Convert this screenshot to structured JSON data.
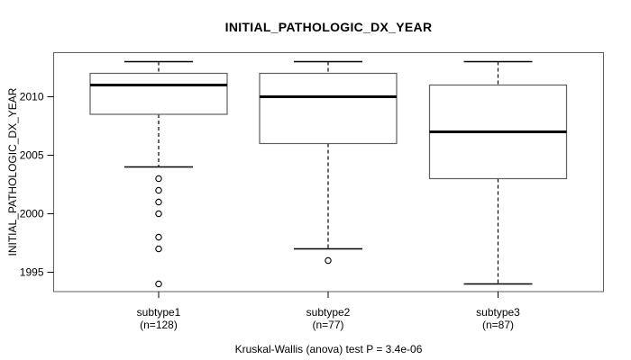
{
  "title": "INITIAL_PATHOLOGIC_DX_YEAR",
  "caption": "Kruskal-Wallis (anova) test P = 3.4e-06",
  "colors": {
    "background": "#ffffff",
    "line": "#000000",
    "box_border": "#5f5f5f",
    "plot_border": "#5f5f5f",
    "text": "#000000"
  },
  "chart_data": {
    "type": "boxplot",
    "title": "INITIAL_PATHOLOGIC_DX_YEAR",
    "xlabel": "",
    "ylabel": "INITIAL_PATHOLOGIC_DX_YEAR",
    "yticks": [
      1995,
      2000,
      2005,
      2010
    ],
    "ylim": [
      1993.3,
      2013.9
    ],
    "grid": false,
    "legend": "none",
    "caption": "Kruskal-Wallis (anova) test P = 3.4e-06",
    "groups": [
      {
        "label": "subtype1",
        "n_label": "(n=128)",
        "n": 128,
        "whisker_low": 2004,
        "q1": 2008.5,
        "median": 2011,
        "q3": 2012,
        "whisker_high": 2013,
        "outliers": [
          2003,
          2002,
          2001,
          2000,
          1998,
          1997,
          1994
        ]
      },
      {
        "label": "subtype2",
        "n_label": "(n=77)",
        "n": 77,
        "whisker_low": 1997,
        "q1": 2006,
        "median": 2010,
        "q3": 2012,
        "whisker_high": 2013,
        "outliers": [
          1996
        ]
      },
      {
        "label": "subtype3",
        "n_label": "(n=87)",
        "n": 87,
        "whisker_low": 1994,
        "q1": 2003,
        "median": 2007,
        "q3": 2011,
        "whisker_high": 2013,
        "outliers": []
      }
    ]
  }
}
